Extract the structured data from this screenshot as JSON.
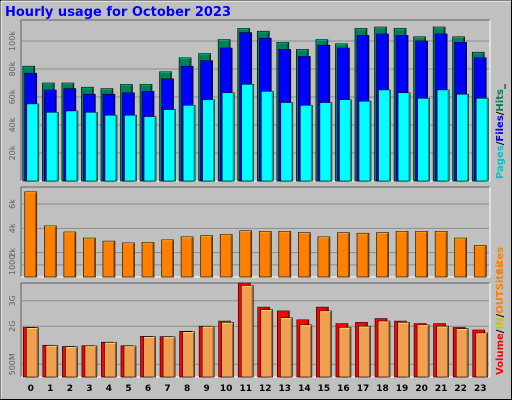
{
  "chart_data": {
    "title": "Hourly usage for October 2023",
    "colors": {
      "background": "#c0c0c0",
      "title": "#0000ff",
      "hits": "#00805c",
      "files": "#0000ff",
      "pages": "#00ffff",
      "sites": "#ff8000",
      "kbytes_out": "#ff0000",
      "kbytes_in": "#ffff00",
      "volume": "#ff0000"
    },
    "categories": [
      "0",
      "1",
      "2",
      "3",
      "4",
      "5",
      "6",
      "7",
      "8",
      "9",
      "10",
      "11",
      "12",
      "13",
      "14",
      "15",
      "16",
      "17",
      "18",
      "19",
      "20",
      "21",
      "22",
      "23"
    ],
    "panels": [
      {
        "type": "bar",
        "ylim": [
          0,
          115000
        ],
        "ticks": [
          {
            "label": "20k",
            "value": 20000
          },
          {
            "label": "40k",
            "value": 40000
          },
          {
            "label": "60k",
            "value": 60000
          },
          {
            "label": "80k",
            "value": 80000
          },
          {
            "label": "100k",
            "value": 100000
          }
        ],
        "legend": [
          {
            "text": "Pages",
            "color": "#00c8c8"
          },
          {
            "text": "/",
            "color": "#000000"
          },
          {
            "text": "Files",
            "color": "#0000ff"
          },
          {
            "text": "/",
            "color": "#000000"
          },
          {
            "text": "Hits",
            "color": "#00805c"
          },
          {
            "text": "_",
            "color": "#000000"
          }
        ],
        "series": [
          {
            "name": "Hits",
            "color": "#00805c",
            "values": [
              82000,
              70000,
              70000,
              67000,
              66000,
              69000,
              69000,
              78000,
              88000,
              91000,
              101000,
              109000,
              107000,
              99000,
              94000,
              101000,
              98000,
              109000,
              110000,
              109000,
              103000,
              110000,
              103000,
              92000
            ]
          },
          {
            "name": "Files",
            "color": "#0000ff",
            "values": [
              77000,
              65000,
              66000,
              62000,
              62000,
              63000,
              64000,
              73000,
              82000,
              86000,
              95000,
              106000,
              102000,
              94000,
              89000,
              97000,
              95000,
              104000,
              105000,
              104000,
              100000,
              105000,
              99000,
              88000
            ]
          },
          {
            "name": "Pages",
            "color": "#00ffff",
            "values": [
              55000,
              49000,
              50000,
              49000,
              47000,
              47000,
              46000,
              51000,
              54000,
              58000,
              63000,
              69000,
              64000,
              56000,
              54000,
              56000,
              58000,
              57000,
              65000,
              63000,
              59000,
              65000,
              62000,
              59000
            ]
          }
        ]
      },
      {
        "type": "bar",
        "ylim": [
          0,
          7400
        ],
        "ticks": [
          {
            "label": "1000",
            "value": 1000
          },
          {
            "label": "2k",
            "value": 2000
          },
          {
            "label": "4k",
            "value": 4000
          },
          {
            "label": "6k",
            "value": 6000
          },
          {
            "label": "8k",
            "value": 8000
          }
        ],
        "legend": [
          {
            "text": "Sites",
            "color": "#ff8000"
          }
        ],
        "series": [
          {
            "name": "Sites",
            "color": "#ff8000",
            "values": [
              7000,
              4200,
              3700,
              3200,
              2950,
              2800,
              2850,
              3050,
              3300,
              3400,
              3500,
              3800,
              3750,
              3750,
              3650,
              3300,
              3650,
              3600,
              3650,
              3750,
              3750,
              3750,
              3200,
              2600
            ]
          }
        ]
      },
      {
        "type": "bar",
        "ylim": [
          0,
          3700
        ],
        "ticks": [
          {
            "label": "500M",
            "value": 500
          },
          {
            "label": "2G",
            "value": 2000
          },
          {
            "label": "3G",
            "value": 3000
          }
        ],
        "legend": [
          {
            "text": "Volume",
            "color": "#ff0000"
          },
          {
            "text": "/",
            "color": "#000000"
          },
          {
            "text": "IN",
            "color": "#c8c800"
          },
          {
            "text": "/",
            "color": "#000000"
          },
          {
            "text": "OUT",
            "color": "#ff8000"
          },
          {
            "text": "Sites",
            "color": "#ff8000"
          }
        ],
        "series": [
          {
            "name": "Volume",
            "color": "#ff0000",
            "values": [
              1950,
              1250,
              1200,
              1230,
              1370,
              1230,
              1600,
              1590,
              1800,
              2000,
              2200,
              3700,
              2750,
              2600,
              2250,
              2750,
              2100,
              2150,
              2300,
              2200,
              2100,
              2100,
              1950,
              1850
            ]
          },
          {
            "name": "OUT",
            "color": "#f0a050",
            "values": [
              1940,
              1240,
              1190,
              1220,
              1360,
              1220,
              1590,
              1580,
              1780,
              1990,
              2150,
              3600,
              2650,
              2330,
              2050,
              2600,
              1950,
              2000,
              2200,
              2150,
              2050,
              2000,
              1900,
              1730
            ]
          }
        ]
      }
    ]
  }
}
